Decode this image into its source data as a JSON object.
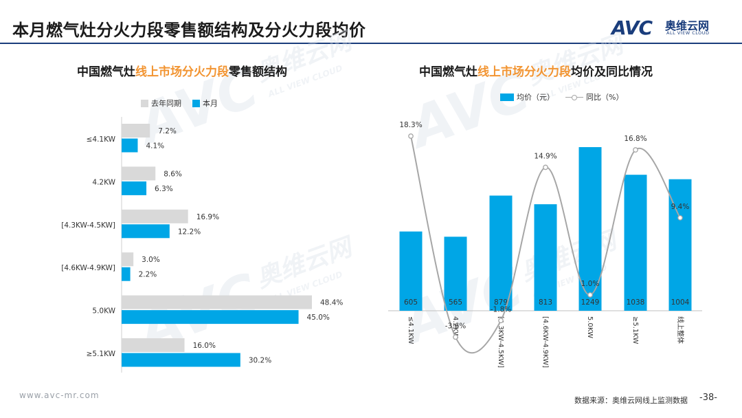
{
  "header": {
    "title": "本月燃气灶分火力段零售额结构及分火力段均价",
    "logo_mark": "AVC",
    "logo_cn": "奥维云网",
    "logo_en": "ALL VIEW CLOUD"
  },
  "colors": {
    "accent": "#00a6e6",
    "previous": "#d9d9d9",
    "line": "#a6a6a6",
    "highlight": "#f29431",
    "brand": "#1a3d7c"
  },
  "footer": {
    "url": "www.avc-mr.com",
    "source": "数据来源：奥维云网线上监测数据",
    "page": "-38-"
  },
  "chart_data": [
    {
      "type": "bar",
      "orientation": "horizontal",
      "title_parts": [
        "中国燃气灶",
        "线上市场分火力段",
        "零售额结构"
      ],
      "categories": [
        "≤4.1KW",
        "4.2KW",
        "[4.3KW-4.5KW]",
        "[4.6KW-4.9KW]",
        "5.0KW",
        "≥5.1KW"
      ],
      "series": [
        {
          "name": "去年同期",
          "values": [
            7.2,
            8.6,
            16.9,
            3.0,
            48.4,
            16.0
          ],
          "labels": [
            "7.2%",
            "8.6%",
            "16.9%",
            "3.0%",
            "48.4%",
            "16.0%"
          ]
        },
        {
          "name": "本月",
          "values": [
            4.1,
            6.3,
            12.2,
            2.2,
            45.0,
            30.2
          ],
          "labels": [
            "4.1%",
            "6.3%",
            "12.2%",
            "2.2%",
            "45.0%",
            "30.2%"
          ]
        }
      ],
      "xlim": [
        0,
        50
      ],
      "grid": false,
      "legend_position": "top"
    },
    {
      "type": "bar",
      "title_parts": [
        "中国燃气灶",
        "线上市场分火力段",
        "均价及同比情况"
      ],
      "categories": [
        "≤4.1KW",
        "4.2KW",
        "[4.3KW-4.5KW]",
        "[4.6KW-4.9KW]",
        "5.0KW",
        "≥5.1KW",
        "线上整体"
      ],
      "series": [
        {
          "name": "均价（元）",
          "type": "bar",
          "values": [
            605,
            565,
            879,
            813,
            1249,
            1038,
            1004
          ],
          "labels": [
            "605",
            "565",
            "879",
            "813",
            "1249",
            "1038",
            "1004"
          ]
        },
        {
          "name": "同比（%）",
          "type": "line",
          "smooth": true,
          "values": [
            18.3,
            -3.6,
            -1.8,
            14.9,
            1.0,
            16.8,
            9.4
          ],
          "labels": [
            "18.3%",
            "-3.6%",
            "-1.8%",
            "14.9%",
            "1.0%",
            "16.8%",
            "9.4%"
          ]
        }
      ],
      "ylim_bar": [
        0,
        1400
      ],
      "ylim_line": [
        -5,
        20
      ],
      "grid": false,
      "legend_position": "top"
    }
  ]
}
